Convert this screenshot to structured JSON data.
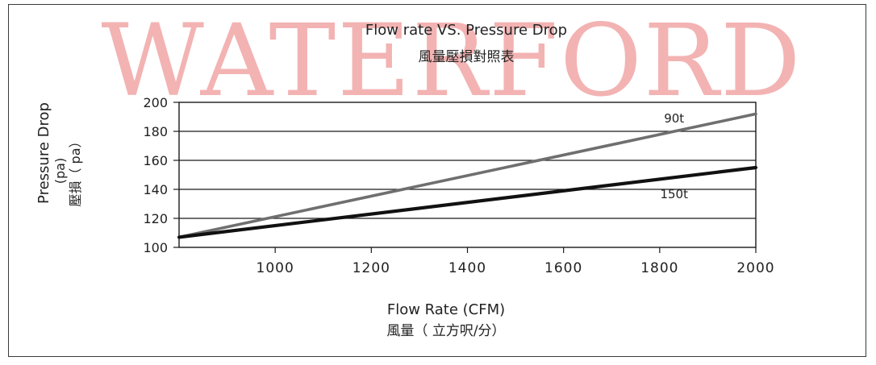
{
  "watermark": {
    "text": "WATERFORD",
    "color": "#f3b3b3"
  },
  "colors": {
    "frame": "#3a3a3a",
    "grid": "#1a1a1a",
    "text": "#222222"
  },
  "chart_data": {
    "type": "line",
    "title": "Flow rate VS. Pressure Drop",
    "subtitle": "風量壓損對照表",
    "xlabel": "Flow Rate (CFM)",
    "xlabel_secondary": "風量（ 立方呎/分）",
    "ylabel": "Pressure Drop",
    "ylabel_unit": "(pa)",
    "ylabel_secondary": "壓損（ pa）",
    "xlim": [
      800,
      2000
    ],
    "ylim": [
      100,
      200
    ],
    "x_ticks": [
      1000,
      1200,
      1400,
      1600,
      1800,
      2000
    ],
    "y_ticks": [
      100,
      120,
      140,
      160,
      180,
      200
    ],
    "grid": {
      "horizontal": true,
      "vertical": false
    },
    "series": [
      {
        "name": "90t",
        "color": "#6f6f6f",
        "x": [
          800,
          2000
        ],
        "y": [
          107,
          192
        ],
        "label_at": [
          1830,
          186
        ]
      },
      {
        "name": "150t",
        "color": "#111111",
        "x": [
          800,
          2000
        ],
        "y": [
          107,
          155
        ],
        "label_at": [
          1830,
          134
        ]
      }
    ]
  }
}
